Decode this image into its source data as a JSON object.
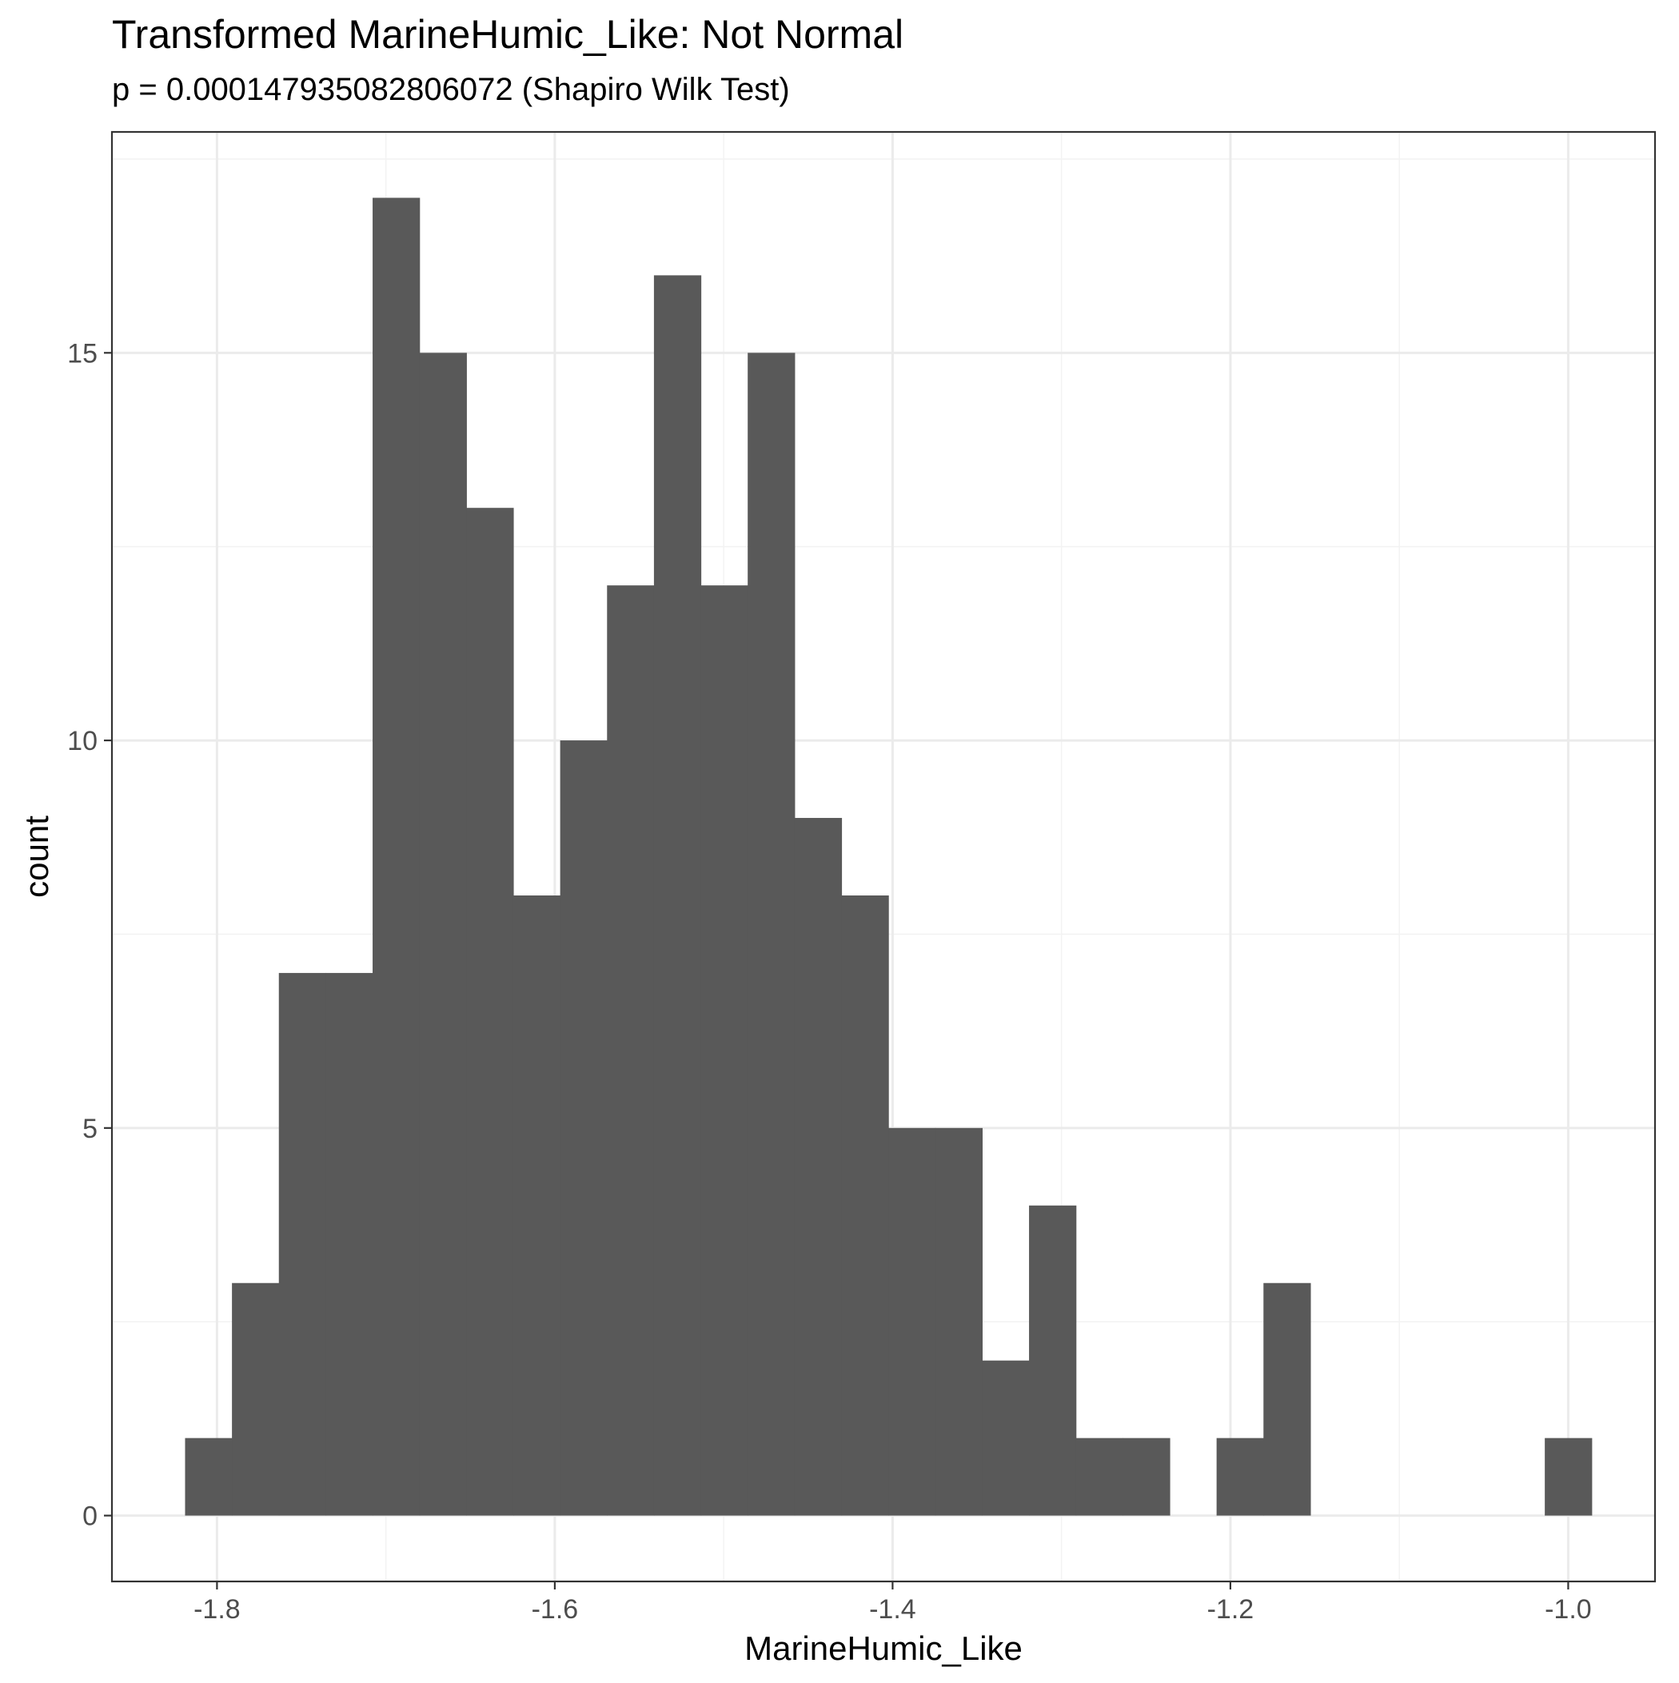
{
  "chart_data": {
    "type": "bar",
    "title": "Transformed MarineHumic_Like: Not Normal",
    "subtitle": "p = 0.000147935082806072 (Shapiro Wilk Test)",
    "xlabel": "MarineHumic_Like",
    "ylabel": "count",
    "xlim": [
      -1.8622,
      -0.9486
    ],
    "ylim": [
      -0.85,
      17.85
    ],
    "x_ticks": [
      -1.8,
      -1.6,
      -1.4,
      -1.2,
      -1.0
    ],
    "x_tick_labels": [
      "-1.8",
      "-1.6",
      "-1.4",
      "-1.2",
      "-1.0"
    ],
    "y_ticks": [
      0,
      5,
      10,
      15
    ],
    "y_tick_labels": [
      "0",
      "5",
      "10",
      "15"
    ],
    "bin_start": -1.8189,
    "bin_width": 0.02776,
    "values": [
      1,
      3,
      7,
      7,
      17,
      15,
      13,
      8,
      10,
      12,
      16,
      12,
      15,
      9,
      8,
      5,
      5,
      2,
      4,
      1,
      1,
      0,
      1,
      3,
      0,
      0,
      0,
      0,
      0,
      1
    ],
    "grid": true,
    "legend": "none",
    "colors": {
      "bar": "#595959",
      "grid_major": "#ebebeb",
      "grid_minor": "#f3f3f3",
      "panel_border": "#333333",
      "tick_label": "#4d4d4d",
      "text": "#000000"
    }
  }
}
